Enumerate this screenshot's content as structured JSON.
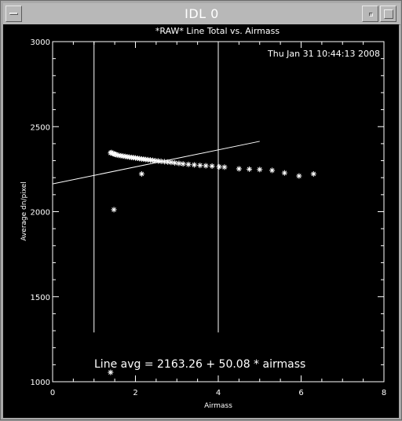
{
  "window": {
    "title": "IDL 0"
  },
  "chart_data": {
    "type": "scatter",
    "title": "*RAW* Line Total vs. Airmass",
    "timestamp": "Thu Jan 31 10:44:13 2008",
    "xlabel": "Airmass",
    "ylabel": "Average dn/pixel",
    "xlim": [
      0,
      8
    ],
    "ylim": [
      1000,
      3000
    ],
    "xticks": [
      0,
      2,
      4,
      6,
      8
    ],
    "yticks": [
      1000,
      1500,
      2000,
      2500,
      3000
    ],
    "grid": false,
    "annotation": "Line avg = 2163.26 + 50.08 * airmass",
    "fit": {
      "intercept": 2163.26,
      "slope": 50.08,
      "x_range": [
        0,
        5.0
      ]
    },
    "vertical_lines": [
      1.0,
      4.0
    ],
    "vertical_line_ymin": 1290,
    "points": {
      "x": [
        1.4,
        1.42,
        1.45,
        1.48,
        1.5,
        1.53,
        1.56,
        1.6,
        1.65,
        1.7,
        1.75,
        1.8,
        1.85,
        1.9,
        1.95,
        2.0,
        2.05,
        2.1,
        2.15,
        2.2,
        2.25,
        2.3,
        2.36,
        2.42,
        2.48,
        2.55,
        2.62,
        2.7,
        2.78,
        2.86,
        2.95,
        3.05,
        3.15,
        3.28,
        3.42,
        3.56,
        3.7,
        3.85,
        4.02,
        4.15,
        4.5,
        4.75,
        5.0,
        5.3,
        5.6,
        5.95,
        6.3,
        1.48,
        2.15,
        1.4
      ],
      "y": [
        2345,
        2348,
        2343,
        2340,
        2338,
        2336,
        2333,
        2331,
        2329,
        2327,
        2325,
        2323,
        2321,
        2319,
        2318,
        2316,
        2314,
        2312,
        2310,
        2309,
        2307,
        2306,
        2304,
        2302,
        2300,
        2298,
        2296,
        2294,
        2292,
        2290,
        2287,
        2284,
        2281,
        2278,
        2275,
        2272,
        2270,
        2268,
        2264,
        2262,
        2252,
        2250,
        2248,
        2243,
        2228,
        2210,
        2222,
        2012,
        2222,
        1055
      ]
    }
  }
}
